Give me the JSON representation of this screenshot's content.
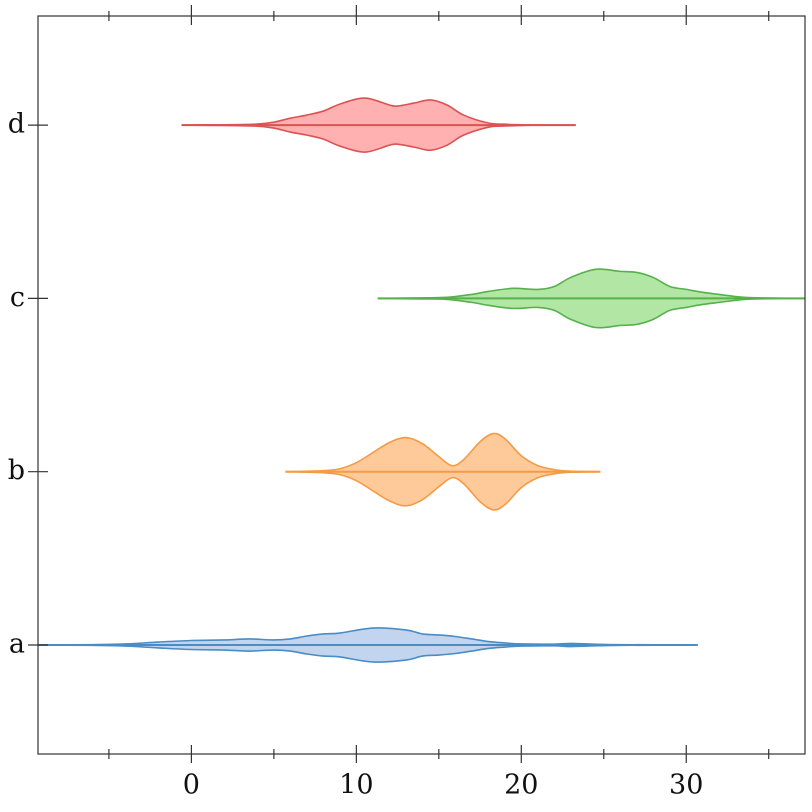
{
  "chart_data": {
    "type": "violin",
    "orientation": "horizontal",
    "categories": [
      "a",
      "b",
      "c",
      "d"
    ],
    "violins": [
      {
        "color": "#4a8cc4",
        "fill": "#c3d4ee",
        "x": [
          -9.3,
          -6,
          -4,
          -2,
          0,
          2,
          3.5,
          5,
          6,
          7,
          8,
          9,
          11,
          13,
          14,
          15,
          16,
          17,
          18,
          19,
          20,
          22,
          23,
          24,
          26,
          30.7
        ],
        "widths": [
          0,
          0.002,
          0.006,
          0.017,
          0.026,
          0.029,
          0.035,
          0.029,
          0.035,
          0.052,
          0.064,
          0.069,
          0.098,
          0.087,
          0.064,
          0.058,
          0.049,
          0.035,
          0.02,
          0.012,
          0.006,
          0.005,
          0.009,
          0.006,
          0.002,
          0
        ]
      },
      {
        "color": "#f59a45",
        "fill": "#ffca99",
        "x": [
          5.7,
          8,
          9,
          10,
          11,
          12,
          13,
          14,
          15,
          15.8,
          16.5,
          17.5,
          18.3,
          19,
          20,
          21,
          22,
          23,
          24.8
        ],
        "widths": [
          0,
          0.006,
          0.017,
          0.052,
          0.11,
          0.168,
          0.197,
          0.162,
          0.087,
          0.035,
          0.069,
          0.173,
          0.22,
          0.191,
          0.092,
          0.035,
          0.012,
          0.003,
          0
        ]
      },
      {
        "color": "#55b24b",
        "fill": "#b2e6a4",
        "x": [
          11.3,
          14,
          15.5,
          17,
          18,
          19.5,
          21,
          22,
          23,
          24.5,
          26,
          27,
          28,
          29,
          30,
          31,
          32,
          33.5,
          35,
          37.2
        ],
        "widths": [
          0,
          0.003,
          0.006,
          0.023,
          0.04,
          0.058,
          0.052,
          0.069,
          0.121,
          0.168,
          0.156,
          0.15,
          0.121,
          0.069,
          0.052,
          0.035,
          0.023,
          0.006,
          0.002,
          0
        ]
      },
      {
        "color": "#dc5252",
        "fill": "#ffb0b0",
        "x": [
          -0.6,
          2,
          4,
          5,
          6,
          7,
          8,
          9,
          10.5,
          12,
          12.5,
          13.5,
          14.5,
          15.5,
          16.5,
          18,
          19,
          20,
          21,
          23.3
        ],
        "widths": [
          0,
          0.002,
          0.006,
          0.017,
          0.04,
          0.058,
          0.081,
          0.121,
          0.156,
          0.116,
          0.11,
          0.127,
          0.145,
          0.116,
          0.058,
          0.012,
          0.005,
          0.002,
          0,
          0
        ]
      }
    ],
    "xlim": [
      -9.3,
      37.2
    ],
    "xticks": [
      0,
      10,
      20,
      30
    ],
    "xminorticks": [
      -5,
      5,
      15,
      25,
      35
    ]
  }
}
